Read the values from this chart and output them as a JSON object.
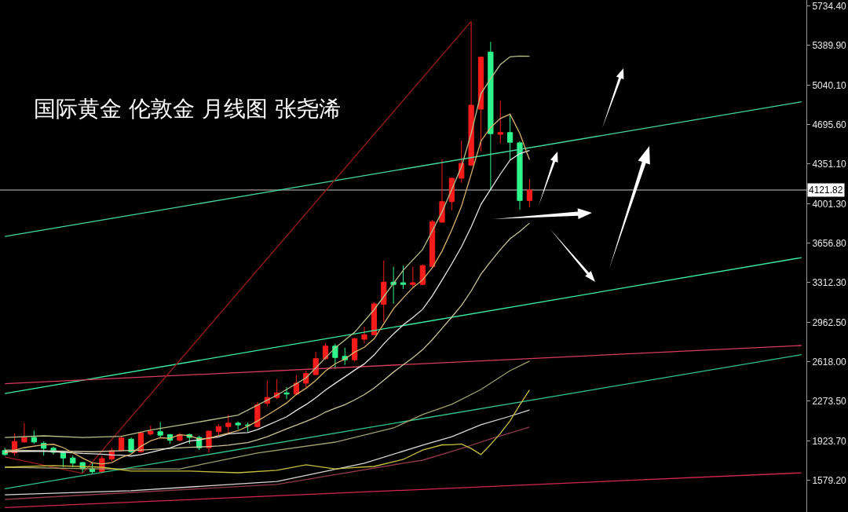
{
  "chart_data": {
    "type": "candlestick",
    "title": "国际黄金 伦敦金 月线图 张尧浠",
    "categories": [
      null,
      null,
      null,
      null,
      null,
      null,
      null,
      null,
      null,
      null,
      null,
      null,
      null,
      null,
      null,
      null,
      null,
      null,
      null,
      null,
      null,
      null,
      null,
      null,
      null,
      null,
      null,
      null,
      null,
      null,
      null,
      null,
      null,
      null,
      null,
      null,
      null,
      null,
      null,
      null,
      null,
      null,
      null,
      null,
      null,
      null,
      null,
      null,
      null,
      null,
      null,
      null,
      null,
      null,
      null,
      null,
      null,
      null,
      null,
      null,
      null,
      null,
      null,
      null,
      null,
      null,
      null,
      null,
      null,
      null,
      null,
      null,
      null,
      null,
      null,
      null,
      null,
      null,
      null,
      null,
      null,
      null,
      null
    ],
    "ohlc": [
      [
        1840,
        1865,
        1795,
        1805
      ],
      [
        1820,
        1990,
        1795,
        1920
      ],
      [
        1915,
        2080,
        1910,
        1955
      ],
      [
        1955,
        2015,
        1900,
        1915
      ],
      [
        1905,
        1920,
        1795,
        1860
      ],
      [
        1860,
        1875,
        1805,
        1825
      ],
      [
        1825,
        1830,
        1695,
        1775
      ],
      [
        1775,
        1795,
        1695,
        1730
      ],
      [
        1735,
        1740,
        1640,
        1680
      ],
      [
        1680,
        1735,
        1640,
        1655
      ],
      [
        1655,
        1795,
        1640,
        1770
      ],
      [
        1765,
        1865,
        1745,
        1840
      ],
      [
        1840,
        1970,
        1830,
        1950
      ],
      [
        1940,
        1955,
        1820,
        1830
      ],
      [
        1830,
        2005,
        1820,
        1995
      ],
      [
        1985,
        2060,
        1970,
        2010
      ],
      [
        2005,
        2090,
        1950,
        1975
      ],
      [
        1980,
        1985,
        1900,
        1930
      ],
      [
        1930,
        1995,
        1920,
        1980
      ],
      [
        1980,
        1990,
        1900,
        1955
      ],
      [
        1955,
        1970,
        1845,
        1865
      ],
      [
        1865,
        2015,
        1820,
        2010
      ],
      [
        2005,
        2070,
        1970,
        2050
      ],
      [
        2050,
        2155,
        1990,
        2080
      ],
      [
        2080,
        2095,
        2025,
        2065
      ],
      [
        2065,
        2085,
        2005,
        2060
      ],
      [
        2050,
        2265,
        2040,
        2240
      ],
      [
        2255,
        2450,
        2230,
        2305
      ],
      [
        2305,
        2465,
        2290,
        2345
      ],
      [
        2345,
        2395,
        2290,
        2335
      ],
      [
        2335,
        2500,
        2325,
        2430
      ],
      [
        2430,
        2540,
        2395,
        2515
      ],
      [
        2505,
        2705,
        2500,
        2645
      ],
      [
        2645,
        2780,
        2635,
        2755
      ],
      [
        2755,
        2775,
        2555,
        2655
      ],
      [
        2665,
        2740,
        2590,
        2635
      ],
      [
        2635,
        2830,
        2620,
        2820
      ],
      [
        2815,
        2925,
        2780,
        2855
      ],
      [
        2855,
        3140,
        2850,
        3125
      ],
      [
        3120,
        3505,
        2965,
        3315
      ],
      [
        3315,
        3450,
        3125,
        3295
      ],
      [
        3310,
        3460,
        3255,
        3295
      ],
      [
        3295,
        3450,
        3275,
        3310
      ],
      [
        3295,
        3470,
        3290,
        3460
      ],
      [
        3450,
        3860,
        3435,
        3845
      ],
      [
        3840,
        4390,
        3835,
        4020
      ],
      [
        4020,
        4230,
        3945,
        4225
      ],
      [
        4225,
        4555,
        4185,
        4355
      ],
      [
        4340,
        5600,
        4330,
        4865
      ],
      [
        4830,
        5290,
        4460,
        5285
      ],
      [
        5330,
        5420,
        4120,
        4615
      ],
      [
        4610,
        4905,
        4530,
        4625
      ],
      [
        4625,
        4790,
        4390,
        4540
      ],
      [
        4535,
        4550,
        3950,
        4030
      ],
      [
        4030,
        4220,
        3970,
        4121.82
      ],
      null,
      null,
      null,
      null,
      null,
      null,
      null,
      null,
      null,
      null,
      null,
      null,
      null,
      null,
      null,
      null,
      null,
      null,
      null,
      null,
      null,
      null,
      null,
      null,
      null,
      null,
      null,
      null
    ],
    "colors": [
      "#2ef58c",
      "#f51c1c",
      "#f51c1c",
      "#2ef58c",
      "#2ef58c",
      "#2ef58c",
      "#2ef58c",
      "#2ef58c",
      "#2ef58c",
      "#2ef58c",
      "#f51c1c",
      "#f51c1c",
      "#f51c1c",
      "#2ef58c",
      "#f51c1c",
      "#f51c1c",
      "#2ef58c",
      "#2ef58c",
      "#f51c1c",
      "#2ef58c",
      "#2ef58c",
      "#f51c1c",
      "#f51c1c",
      "#f51c1c",
      "#2ef58c",
      "#2ef58c",
      "#f51c1c",
      "#f51c1c",
      "#f51c1c",
      "#2ef58c",
      "#f51c1c",
      "#f51c1c",
      "#f51c1c",
      "#f51c1c",
      "#2ef58c",
      "#2ef58c",
      "#f51c1c",
      "#f51c1c",
      "#f51c1c",
      "#f51c1c",
      "#2ef58c",
      "#2ef58c",
      "#f51c1c",
      "#f51c1c",
      "#f51c1c",
      "#f51c1c",
      "#f51c1c",
      "#f51c1c",
      "#f51c1c",
      "#f51c1c",
      "#2ef58c",
      "#f51c1c",
      "#2ef58c",
      "#2ef58c",
      "#f51c1c",
      null,
      null,
      null,
      null,
      null,
      null,
      null,
      null,
      null,
      null,
      null,
      null,
      null,
      null,
      null,
      null,
      null,
      null,
      null,
      null,
      null,
      null,
      null,
      null,
      null,
      null,
      null,
      null
    ],
    "ylim": [
      1302,
      5786
    ],
    "yticks": [
      {
        "value": 5734.4,
        "label": "5734.40"
      },
      {
        "value": 5389.9,
        "label": "5389.90"
      },
      {
        "value": 5040.1,
        "label": "5040.10"
      },
      {
        "value": 4695.6,
        "label": "4695.60"
      },
      {
        "value": 4351.1,
        "label": "4351.10"
      },
      {
        "value": 4001.3,
        "label": "4001.30"
      },
      {
        "value": 3656.8,
        "label": "3656.80"
      },
      {
        "value": 3312.3,
        "label": "3312.30"
      },
      {
        "value": 2962.5,
        "label": "2962.50"
      },
      {
        "value": 2618,
        "label": "2618.00"
      },
      {
        "value": 2273.5,
        "label": "2273.50"
      },
      {
        "value": 1923.7,
        "label": "1923.70"
      },
      {
        "value": 1579.2,
        "label": "1579.20"
      }
    ],
    "tick_labels": "y",
    "ref_lines": [
      {
        "axis": "y",
        "value": 4121.82,
        "label": "4121.82",
        "color": "#c8c8c8"
      }
    ],
    "series": [
      {
        "type": "line",
        "color": "#46d9a0",
        "values": [
          3715,
          null,
          null,
          null,
          null,
          null,
          null,
          null,
          null,
          null,
          null,
          null,
          null,
          null,
          null,
          null,
          null,
          null,
          null,
          null,
          null,
          null,
          null,
          null,
          null,
          null,
          null,
          null,
          null,
          null,
          null,
          null,
          null,
          null,
          null,
          null,
          null,
          null,
          null,
          null,
          null,
          null,
          null,
          null,
          null,
          null,
          null,
          null,
          null,
          null,
          null,
          null,
          null,
          null,
          null,
          null,
          null,
          null,
          null,
          null,
          null,
          null,
          null,
          null,
          null,
          null,
          null,
          null,
          null,
          null,
          null,
          null,
          null,
          null,
          null,
          null,
          null,
          null,
          null,
          null,
          null,
          null,
          4895
        ]
      },
      {
        "type": "line",
        "color": "#3cf0a4",
        "values": [
          2340,
          null,
          null,
          null,
          null,
          null,
          null,
          null,
          null,
          null,
          null,
          null,
          null,
          null,
          null,
          null,
          null,
          null,
          null,
          null,
          null,
          null,
          null,
          null,
          null,
          null,
          null,
          null,
          null,
          null,
          null,
          null,
          null,
          null,
          null,
          null,
          null,
          null,
          null,
          null,
          null,
          null,
          null,
          null,
          null,
          null,
          null,
          null,
          null,
          null,
          null,
          null,
          null,
          null,
          null,
          null,
          null,
          null,
          null,
          null,
          null,
          null,
          null,
          null,
          null,
          null,
          null,
          null,
          null,
          null,
          null,
          null,
          null,
          null,
          null,
          null,
          null,
          null,
          null,
          null,
          null,
          null,
          3530
        ]
      },
      {
        "type": "line",
        "color": "#d83c5c",
        "values": [
          2425,
          null,
          null,
          null,
          null,
          null,
          null,
          null,
          null,
          null,
          null,
          null,
          null,
          null,
          null,
          null,
          null,
          null,
          null,
          null,
          null,
          null,
          null,
          null,
          null,
          null,
          null,
          null,
          null,
          null,
          null,
          null,
          null,
          null,
          null,
          null,
          null,
          null,
          null,
          null,
          null,
          null,
          null,
          null,
          null,
          null,
          null,
          null,
          null,
          null,
          null,
          null,
          null,
          null,
          null,
          null,
          null,
          null,
          null,
          null,
          null,
          null,
          null,
          null,
          null,
          null,
          null,
          null,
          null,
          null,
          null,
          null,
          null,
          null,
          null,
          null,
          null,
          null,
          null,
          null,
          null,
          null,
          2760
        ]
      },
      {
        "type": "line",
        "color": "#34c48e",
        "values": [
          1505,
          null,
          null,
          null,
          null,
          null,
          null,
          null,
          null,
          null,
          null,
          null,
          null,
          null,
          null,
          null,
          null,
          null,
          null,
          null,
          null,
          null,
          null,
          null,
          null,
          null,
          null,
          null,
          null,
          null,
          null,
          null,
          null,
          null,
          null,
          null,
          null,
          null,
          null,
          null,
          null,
          null,
          null,
          null,
          null,
          null,
          null,
          null,
          null,
          null,
          null,
          null,
          null,
          null,
          null,
          null,
          null,
          null,
          null,
          null,
          null,
          null,
          null,
          null,
          null,
          null,
          null,
          null,
          null,
          null,
          null,
          null,
          null,
          null,
          null,
          null,
          null,
          null,
          null,
          null,
          null,
          null,
          2680
        ]
      },
      {
        "type": "line",
        "color": "#d6264e",
        "values": [
          1340,
          null,
          null,
          null,
          null,
          null,
          null,
          null,
          null,
          null,
          null,
          null,
          null,
          null,
          null,
          null,
          null,
          null,
          null,
          null,
          null,
          null,
          null,
          null,
          null,
          null,
          null,
          null,
          null,
          null,
          null,
          null,
          null,
          null,
          null,
          null,
          null,
          null,
          null,
          null,
          null,
          null,
          null,
          null,
          null,
          null,
          null,
          null,
          null,
          null,
          null,
          null,
          null,
          null,
          null,
          null,
          null,
          null,
          null,
          null,
          null,
          null,
          null,
          null,
          null,
          null,
          null,
          null,
          null,
          null,
          null,
          null,
          null,
          null,
          null,
          null,
          null,
          null,
          null,
          null,
          null,
          null,
          1645
        ]
      },
      {
        "type": "line",
        "color": "#9a1c1c",
        "values": [
          1785,
          null,
          null,
          null,
          null,
          null,
          null,
          null,
          1640,
          null,
          null,
          null,
          null,
          null,
          null,
          null,
          null,
          null,
          null,
          null,
          null,
          null,
          null,
          null,
          null,
          null,
          null,
          null,
          null,
          null,
          null,
          null,
          null,
          null,
          null,
          null,
          null,
          null,
          null,
          null,
          null,
          null,
          null,
          null,
          null,
          null,
          null,
          null,
          5600,
          null,
          null,
          null,
          null,
          null,
          null,
          null,
          null,
          null,
          null,
          null,
          null,
          null,
          null,
          null,
          null,
          null,
          null,
          null,
          null,
          null,
          null,
          null,
          null,
          null,
          null,
          null,
          null,
          null,
          null,
          null,
          null,
          null,
          null
        ]
      },
      {
        "type": "line",
        "color": "#8c3a4a",
        "values": [
          1412,
          null,
          null,
          null,
          null,
          null,
          null,
          null,
          null,
          null,
          null,
          null,
          null,
          null,
          null,
          null,
          null,
          null,
          null,
          null,
          null,
          null,
          null,
          null,
          null,
          null,
          null,
          null,
          1543,
          null,
          null,
          null,
          null,
          null,
          null,
          null,
          null,
          null,
          null,
          null,
          null,
          1729,
          null,
          1756,
          null,
          null,
          null,
          1859,
          null,
          null,
          1942,
          null,
          null,
          null,
          2045,
          null,
          null,
          null,
          null,
          null,
          null,
          null,
          null,
          null,
          null,
          null,
          null,
          null,
          null,
          null,
          null,
          null,
          null,
          null,
          null,
          null,
          null,
          null,
          null,
          null,
          null,
          null,
          null
        ]
      },
      {
        "type": "line",
        "color": "#d8d8d8",
        "values": [
          1453,
          null,
          null,
          null,
          null,
          null,
          null,
          null,
          null,
          null,
          null,
          null,
          null,
          1488,
          null,
          null,
          null,
          null,
          null,
          null,
          null,
          null,
          null,
          null,
          null,
          null,
          null,
          null,
          1570,
          null,
          null,
          null,
          null,
          null,
          null,
          null,
          null,
          1729,
          null,
          null,
          null,
          null,
          null,
          1887,
          null,
          null,
          1962,
          null,
          null,
          2066,
          null,
          null,
          2141,
          null,
          2196,
          null,
          null,
          null,
          null,
          null,
          null,
          null,
          null,
          null,
          null,
          null,
          null,
          null,
          null,
          null,
          null,
          null,
          null,
          null,
          null,
          null,
          null,
          null,
          null,
          null,
          null,
          null,
          null
        ]
      },
      {
        "type": "line",
        "color": "#a0a070",
        "values": [
          1694,
          null,
          null,
          null,
          null,
          null,
          null,
          null,
          null,
          null,
          1680,
          null,
          null,
          null,
          null,
          null,
          null,
          null,
          1680,
          null,
          null,
          null,
          null,
          null,
          null,
          null,
          1818,
          null,
          null,
          null,
          null,
          null,
          null,
          null,
          1914,
          null,
          null,
          null,
          null,
          null,
          2038,
          null,
          null,
          2155,
          null,
          null,
          2245,
          null,
          null,
          2375,
          null,
          null,
          2540,
          null,
          2623,
          null,
          null,
          null,
          null,
          null,
          null,
          null,
          null,
          null,
          null,
          null,
          null,
          null,
          null,
          null,
          null,
          null,
          null,
          null,
          null,
          null,
          null,
          null,
          null,
          null,
          null,
          null,
          null
        ]
      },
      {
        "type": "line",
        "color": "#c8c040",
        "values": [
          1694,
          null,
          null,
          null,
          null,
          1708,
          null,
          null,
          null,
          null,
          1694,
          null,
          null,
          1660,
          null,
          null,
          null,
          null,
          null,
          1660,
          null,
          null,
          null,
          null,
          1646,
          null,
          null,
          null,
          1667,
          null,
          null,
          1716,
          null,
          null,
          1680,
          null,
          1692,
          null,
          1701,
          null,
          null,
          1763,
          null,
          1845,
          null,
          1890,
          1891,
          1898,
          1858,
          1805,
          1893,
          1990,
          2101,
          2240,
          2370,
          null,
          null,
          null,
          null,
          null,
          null,
          null,
          null,
          null,
          null,
          null,
          null,
          null,
          null,
          null,
          null,
          null,
          null,
          null,
          null,
          null,
          null,
          null,
          null,
          null,
          null,
          null,
          null
        ]
      },
      {
        "type": "line",
        "color": "#c9c49a",
        "values": [
          1845,
          null,
          null,
          null,
          null,
          null,
          null,
          null,
          null,
          1830,
          null,
          null,
          null,
          null,
          1845,
          null,
          null,
          null,
          null,
          1868,
          1871,
          1875,
          1880,
          1888,
          1899,
          1910,
          1934,
          1962,
          1996,
          2030,
          2063,
          2096,
          2131,
          2177,
          2210,
          2242,
          2284,
          2330,
          2387,
          2455,
          2527,
          2591,
          2654,
          2723,
          2812,
          2910,
          3009,
          3112,
          3238,
          3385,
          3495,
          3600,
          3695,
          3759,
          3832,
          null,
          null,
          null,
          null,
          null,
          null,
          null,
          null,
          null,
          null,
          null,
          null,
          null,
          null,
          null,
          null,
          null,
          null,
          null,
          null,
          null,
          null,
          null,
          null,
          null,
          null,
          null,
          null
        ]
      },
      {
        "type": "line",
        "color": "#b8c08a",
        "values": [
          1955,
          null,
          null,
          null,
          1969,
          null,
          null,
          null,
          1955,
          null,
          null,
          null,
          1965,
          null,
          null,
          2020,
          null,
          null,
          null,
          2076,
          null,
          null,
          null,
          null,
          2151,
          null,
          null,
          null,
          2325,
          null,
          null,
          2476,
          null,
          null,
          2740,
          null,
          2876,
          null,
          3073,
          null,
          null,
          3419,
          null,
          3601,
          null,
          3930,
          4127,
          4326,
          4618,
          4965,
          5097,
          5220,
          5289,
          5295,
          5294,
          null,
          null,
          null,
          null,
          null,
          null,
          null,
          null,
          null,
          null,
          null,
          null,
          null,
          null,
          null,
          null,
          null,
          null,
          null,
          null,
          null,
          null,
          null,
          null,
          null,
          null,
          null,
          null
        ]
      },
      {
        "type": "line",
        "color": "#e6e6e6",
        "values": [
          1830,
          null,
          null,
          null,
          1835,
          null,
          null,
          null,
          1815,
          1812,
          1809,
          1801,
          1800,
          1792,
          1805,
          1824,
          1844,
          1864,
          1894,
          1924,
          1933,
          1950,
          1960,
          1985,
          1992,
          1997,
          2024,
          2061,
          2098,
          2136,
          2192,
          2243,
          2302,
          2370,
          2429,
          2486,
          2544,
          2599,
          2677,
          2775,
          2862,
          2940,
          3006,
          3077,
          3196,
          3334,
          3475,
          3625,
          3799,
          3996,
          4128,
          4261,
          4384,
          4441,
          4468,
          null,
          null,
          null,
          null,
          null,
          null,
          null,
          null,
          null,
          null,
          null,
          null,
          null,
          null,
          null,
          null,
          null,
          null,
          null,
          null,
          null,
          null,
          null,
          null,
          null,
          null,
          null,
          null
        ]
      },
      {
        "type": "line",
        "color": "#d9b36c",
        "values": [
          1818,
          null,
          1866,
          null,
          1891,
          1895,
          1866,
          1821,
          1774,
          1733,
          1722,
          1735,
          1779,
          1809,
          1877,
          1925,
          1952,
          1948,
          1978,
          1970,
          1941,
          1948,
          1972,
          1992,
          2014,
          2053,
          2099,
          2150,
          2203,
          2257,
          2331,
          2386,
          2454,
          2536,
          2600,
          2641,
          2702,
          2744,
          2818,
          2950,
          3082,
          3177,
          3268,
          3335,
          3441,
          3586,
          3772,
          3981,
          4262,
          4550,
          4669,
          4749,
          4786,
          4619,
          4386,
          null,
          null,
          null,
          null,
          null,
          null,
          null,
          null,
          null,
          null,
          null,
          null,
          null,
          null,
          null,
          null,
          null,
          null,
          null,
          null,
          null,
          null,
          null,
          null,
          null,
          null,
          null,
          null
        ]
      }
    ]
  }
}
